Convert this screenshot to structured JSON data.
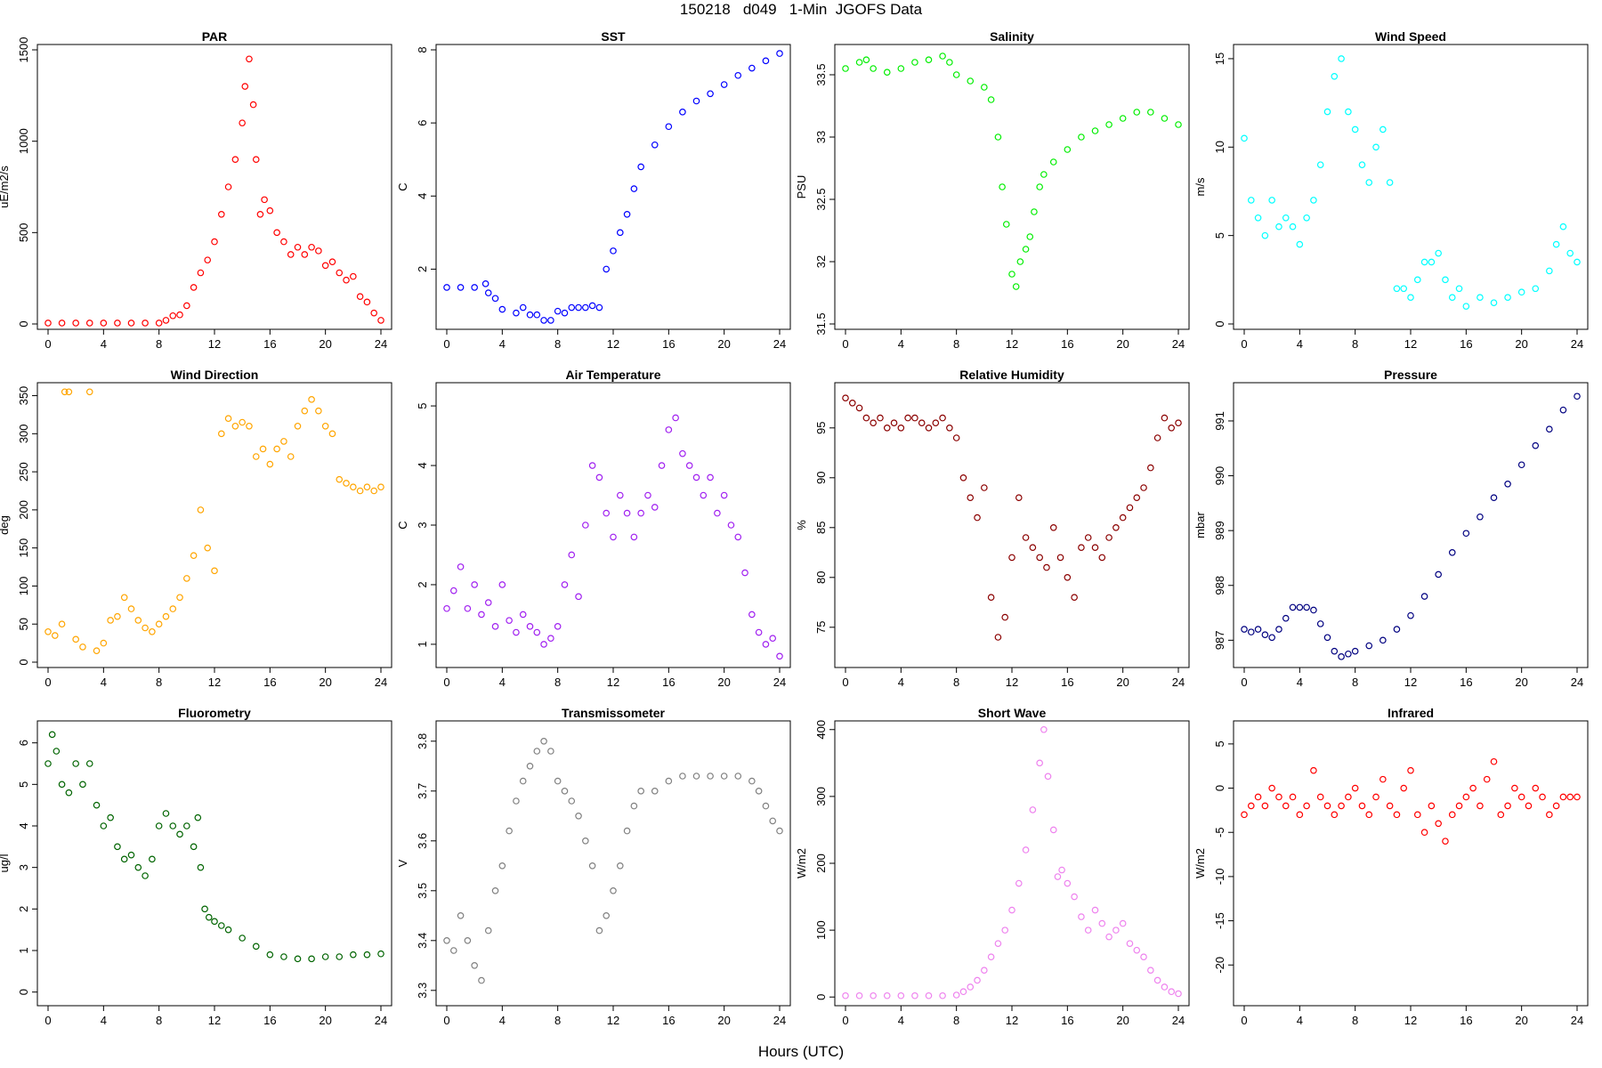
{
  "title": "150218   d049   1-Min  JGOFS Data",
  "xlabel": "Hours (UTC)",
  "chart_data": [
    {
      "type": "scatter",
      "title": "PAR",
      "ylabel": "uE/m2/s",
      "color": "#ff0000",
      "xlim": [
        0,
        24
      ],
      "ylim": [
        0,
        1500
      ],
      "xticks": [
        0,
        4,
        8,
        12,
        16,
        20,
        24
      ],
      "yticks": [
        0,
        500,
        1000,
        1500
      ],
      "x": [
        0,
        1,
        2,
        3,
        4,
        5,
        6,
        7,
        8,
        8.5,
        9,
        9.5,
        10,
        10.5,
        11,
        11.5,
        12,
        12.5,
        13,
        13.5,
        14,
        14.2,
        14.5,
        14.8,
        15,
        15.3,
        15.6,
        16,
        16.5,
        17,
        17.5,
        18,
        18.5,
        19,
        19.5,
        20,
        20.5,
        21,
        21.5,
        22,
        22.5,
        23,
        23.5,
        24
      ],
      "y": [
        5,
        5,
        5,
        5,
        5,
        5,
        5,
        5,
        5,
        20,
        45,
        50,
        100,
        200,
        280,
        350,
        450,
        600,
        750,
        900,
        1100,
        1300,
        1450,
        1200,
        900,
        600,
        680,
        620,
        500,
        450,
        380,
        420,
        380,
        420,
        400,
        320,
        340,
        280,
        240,
        260,
        150,
        120,
        60,
        20
      ]
    },
    {
      "type": "scatter",
      "title": "SST",
      "ylabel": "C",
      "color": "#0000ff",
      "xlim": [
        0,
        24
      ],
      "ylim": [
        0.5,
        8
      ],
      "xticks": [
        0,
        4,
        8,
        12,
        16,
        20,
        24
      ],
      "yticks": [
        2,
        4,
        6,
        8
      ],
      "x": [
        0,
        1,
        2,
        2.8,
        3,
        3.5,
        4,
        5,
        5.5,
        6,
        6.5,
        7,
        7.5,
        8,
        8.5,
        9,
        9.5,
        10,
        10.5,
        11,
        11.5,
        12,
        12.5,
        13,
        13.5,
        14,
        15,
        16,
        17,
        18,
        19,
        20,
        21,
        22,
        23,
        24
      ],
      "y": [
        1.5,
        1.5,
        1.5,
        1.6,
        1.35,
        1.2,
        0.9,
        0.8,
        0.95,
        0.75,
        0.75,
        0.6,
        0.6,
        0.85,
        0.8,
        0.95,
        0.95,
        0.95,
        1.0,
        0.95,
        2.0,
        2.5,
        3.0,
        3.5,
        4.2,
        4.8,
        5.4,
        5.9,
        6.3,
        6.6,
        6.8,
        7.05,
        7.3,
        7.5,
        7.7,
        7.9
      ]
    },
    {
      "type": "scatter",
      "title": "Salinity",
      "ylabel": "PSU",
      "color": "#00ee00",
      "xlim": [
        0,
        24
      ],
      "ylim": [
        31.5,
        33.7
      ],
      "xticks": [
        0,
        4,
        8,
        12,
        16,
        20,
        24
      ],
      "yticks": [
        31.5,
        32.0,
        32.5,
        33.0,
        33.5
      ],
      "x": [
        0,
        1,
        1.5,
        2,
        3,
        4,
        5,
        6,
        7,
        7.5,
        8,
        9,
        10,
        10.5,
        11,
        11.3,
        11.6,
        12,
        12.3,
        12.6,
        13,
        13.3,
        13.6,
        14,
        14.3,
        15,
        16,
        17,
        18,
        19,
        20,
        21,
        22,
        23,
        24
      ],
      "y": [
        33.55,
        33.6,
        33.62,
        33.55,
        33.52,
        33.55,
        33.6,
        33.62,
        33.65,
        33.6,
        33.5,
        33.45,
        33.4,
        33.3,
        33.0,
        32.6,
        32.3,
        31.9,
        31.8,
        32.0,
        32.1,
        32.2,
        32.4,
        32.6,
        32.7,
        32.8,
        32.9,
        33.0,
        33.05,
        33.1,
        33.15,
        33.2,
        33.2,
        33.15,
        33.1
      ]
    },
    {
      "type": "scatter",
      "title": "Wind Speed",
      "ylabel": "m/s",
      "color": "#00ffff",
      "xlim": [
        0,
        24
      ],
      "ylim": [
        0,
        15.5
      ],
      "xticks": [
        0,
        4,
        8,
        12,
        16,
        20,
        24
      ],
      "yticks": [
        0,
        5,
        10,
        15
      ],
      "x": [
        0,
        0.5,
        1,
        1.5,
        2,
        2.5,
        3,
        3.5,
        4,
        4.5,
        5,
        5.5,
        6,
        6.5,
        7,
        7.5,
        8,
        8.5,
        9,
        9.5,
        10,
        10.5,
        11,
        11.5,
        12,
        12.5,
        13,
        13.5,
        14,
        14.5,
        15,
        15.5,
        16,
        17,
        18,
        19,
        20,
        21,
        22,
        22.5,
        23,
        23.5,
        24
      ],
      "y": [
        10.5,
        7,
        6,
        5,
        7,
        5.5,
        6,
        5.5,
        4.5,
        6,
        7,
        9,
        12,
        14,
        15,
        12,
        11,
        9,
        8,
        10,
        11,
        8,
        2,
        2,
        1.5,
        2.5,
        3.5,
        3.5,
        4,
        2.5,
        1.5,
        2,
        1,
        1.5,
        1.2,
        1.5,
        1.8,
        2.0,
        3,
        4.5,
        5.5,
        4.0,
        3.5
      ]
    },
    {
      "type": "scatter",
      "title": "Wind Direction",
      "ylabel": "deg",
      "color": "#ffa500",
      "xlim": [
        0,
        24
      ],
      "ylim": [
        0,
        360
      ],
      "xticks": [
        0,
        4,
        8,
        12,
        16,
        20,
        24
      ],
      "yticks": [
        0,
        50,
        100,
        150,
        200,
        250,
        300,
        350
      ],
      "x": [
        0,
        0.5,
        1,
        1.2,
        1.5,
        2,
        2.5,
        3,
        3.5,
        4,
        4.5,
        5,
        5.5,
        6,
        6.5,
        7,
        7.5,
        8,
        8.5,
        9,
        9.5,
        10,
        10.5,
        11,
        11.5,
        12,
        12.5,
        13,
        13.5,
        14,
        14.5,
        15,
        15.5,
        16,
        16.5,
        17,
        17.5,
        18,
        18.5,
        19,
        19.5,
        20,
        20.5,
        21,
        21.5,
        22,
        22.5,
        23,
        23.5,
        24
      ],
      "y": [
        40,
        35,
        50,
        355,
        355,
        30,
        20,
        355,
        15,
        25,
        55,
        60,
        85,
        70,
        55,
        45,
        40,
        50,
        60,
        70,
        85,
        110,
        140,
        200,
        150,
        120,
        300,
        320,
        310,
        315,
        310,
        270,
        280,
        260,
        280,
        290,
        270,
        310,
        330,
        345,
        330,
        310,
        300,
        240,
        235,
        230,
        225,
        230,
        225,
        230
      ]
    },
    {
      "type": "scatter",
      "title": "Air Temperature",
      "ylabel": "C",
      "color": "#a020f0",
      "xlim": [
        0,
        24
      ],
      "ylim": [
        0.7,
        5.3
      ],
      "xticks": [
        0,
        4,
        8,
        12,
        16,
        20,
        24
      ],
      "yticks": [
        1,
        2,
        3,
        4,
        5
      ],
      "x": [
        0,
        0.5,
        1,
        1.5,
        2,
        2.5,
        3,
        3.5,
        4,
        4.5,
        5,
        5.5,
        6,
        6.5,
        7,
        7.5,
        8,
        8.5,
        9,
        9.5,
        10,
        10.5,
        11,
        11.5,
        12,
        12.5,
        13,
        13.5,
        14,
        14.5,
        15,
        15.5,
        16,
        16.5,
        17,
        17.5,
        18,
        18.5,
        19,
        19.5,
        20,
        20.5,
        21,
        21.5,
        22,
        22.5,
        23,
        23.5,
        24
      ],
      "y": [
        1.6,
        1.9,
        2.3,
        1.6,
        2.0,
        1.5,
        1.7,
        1.3,
        2.0,
        1.4,
        1.2,
        1.5,
        1.3,
        1.2,
        1.0,
        1.1,
        1.3,
        2.0,
        2.5,
        1.8,
        3.0,
        4.0,
        3.8,
        3.2,
        2.8,
        3.5,
        3.2,
        2.8,
        3.2,
        3.5,
        3.3,
        4.0,
        4.6,
        4.8,
        4.2,
        4.0,
        3.8,
        3.5,
        3.8,
        3.2,
        3.5,
        3.0,
        2.8,
        2.2,
        1.5,
        1.2,
        1.0,
        1.1,
        0.8
      ]
    },
    {
      "type": "scatter",
      "title": "Relative Humidity",
      "ylabel": "%",
      "color": "#8b0000",
      "xlim": [
        0,
        24
      ],
      "ylim": [
        71.5,
        99
      ],
      "xticks": [
        0,
        4,
        8,
        12,
        16,
        20,
        24
      ],
      "yticks": [
        75,
        80,
        85,
        90,
        95
      ],
      "x": [
        0,
        0.5,
        1,
        1.5,
        2,
        2.5,
        3,
        3.5,
        4,
        4.5,
        5,
        5.5,
        6,
        6.5,
        7,
        7.5,
        8,
        8.5,
        9,
        9.5,
        10,
        10.5,
        11,
        11.5,
        12,
        12.5,
        13,
        13.5,
        14,
        14.5,
        15,
        15.5,
        16,
        16.5,
        17,
        17.5,
        18,
        18.5,
        19,
        19.5,
        20,
        20.5,
        21,
        21.5,
        22,
        22.5,
        23,
        23.5,
        24
      ],
      "y": [
        98,
        97.5,
        97,
        96,
        95.5,
        96,
        95,
        95.5,
        95,
        96,
        96,
        95.5,
        95,
        95.5,
        96,
        95,
        94,
        90,
        88,
        86,
        89,
        78,
        74,
        76,
        82,
        88,
        84,
        83,
        82,
        81,
        85,
        82,
        80,
        78,
        83,
        84,
        83,
        82,
        84,
        85,
        86,
        87,
        88,
        89,
        91,
        94,
        96,
        95,
        95.5
      ]
    },
    {
      "type": "scatter",
      "title": "Pressure",
      "ylabel": "mbar",
      "color": "#000080",
      "xlim": [
        0,
        24
      ],
      "ylim": [
        986.6,
        991.6
      ],
      "xticks": [
        0,
        4,
        8,
        12,
        16,
        20,
        24
      ],
      "yticks": [
        987,
        988,
        989,
        990,
        991
      ],
      "x": [
        0,
        0.5,
        1,
        1.5,
        2,
        2.5,
        3,
        3.5,
        4,
        4.5,
        5,
        5.5,
        6,
        6.5,
        7,
        7.5,
        8,
        9,
        10,
        11,
        12,
        13,
        14,
        15,
        16,
        17,
        18,
        19,
        20,
        21,
        22,
        23,
        24
      ],
      "y": [
        987.2,
        987.15,
        987.2,
        987.1,
        987.05,
        987.2,
        987.4,
        987.6,
        987.6,
        987.6,
        987.55,
        987.3,
        987.05,
        986.8,
        986.7,
        986.75,
        986.8,
        986.9,
        987.0,
        987.2,
        987.45,
        987.8,
        988.2,
        988.6,
        988.95,
        989.25,
        989.6,
        989.85,
        990.2,
        990.55,
        990.85,
        991.2,
        991.45
      ]
    },
    {
      "type": "scatter",
      "title": "Fluorometry",
      "ylabel": "ug/l",
      "color": "#006400",
      "xlim": [
        0,
        24
      ],
      "ylim": [
        -0.2,
        6.4
      ],
      "xticks": [
        0,
        4,
        8,
        12,
        16,
        20,
        24
      ],
      "yticks": [
        0,
        1,
        2,
        3,
        4,
        5,
        6
      ],
      "x": [
        0,
        0.3,
        0.6,
        1,
        1.5,
        2,
        2.5,
        3,
        3.5,
        4,
        4.5,
        5,
        5.5,
        6,
        6.5,
        7,
        7.5,
        8,
        8.5,
        9,
        9.5,
        10,
        10.5,
        10.8,
        11,
        11.3,
        11.6,
        12,
        12.5,
        13,
        14,
        15,
        16,
        17,
        18,
        19,
        20,
        21,
        22,
        23,
        24
      ],
      "y": [
        5.5,
        6.2,
        5.8,
        5.0,
        4.8,
        5.5,
        5.0,
        5.5,
        4.5,
        4.0,
        4.2,
        3.5,
        3.2,
        3.3,
        3.0,
        2.8,
        3.2,
        4.0,
        4.3,
        4.0,
        3.8,
        4.0,
        3.5,
        4.2,
        3.0,
        2.0,
        1.8,
        1.7,
        1.6,
        1.5,
        1.3,
        1.1,
        0.9,
        0.85,
        0.8,
        0.8,
        0.85,
        0.85,
        0.9,
        0.9,
        0.92
      ]
    },
    {
      "type": "scatter",
      "title": "Transmissometer",
      "ylabel": "V",
      "color": "#808080",
      "xlim": [
        0,
        24
      ],
      "ylim": [
        3.28,
        3.83
      ],
      "xticks": [
        0,
        4,
        8,
        12,
        16,
        20,
        24
      ],
      "yticks": [
        3.3,
        3.4,
        3.5,
        3.6,
        3.7,
        3.8
      ],
      "x": [
        0,
        0.5,
        1,
        1.5,
        2,
        2.5,
        3,
        3.5,
        4,
        4.5,
        5,
        5.5,
        6,
        6.5,
        7,
        7.5,
        8,
        8.5,
        9,
        9.5,
        10,
        10.5,
        11,
        11.5,
        12,
        12.5,
        13,
        13.5,
        14,
        15,
        16,
        17,
        18,
        19,
        20,
        21,
        22,
        22.5,
        23,
        23.5,
        24
      ],
      "y": [
        3.4,
        3.38,
        3.45,
        3.4,
        3.35,
        3.32,
        3.42,
        3.5,
        3.55,
        3.62,
        3.68,
        3.72,
        3.75,
        3.78,
        3.8,
        3.78,
        3.72,
        3.7,
        3.68,
        3.65,
        3.6,
        3.55,
        3.42,
        3.45,
        3.5,
        3.55,
        3.62,
        3.67,
        3.7,
        3.7,
        3.72,
        3.73,
        3.73,
        3.73,
        3.73,
        3.73,
        3.72,
        3.7,
        3.67,
        3.64,
        3.62
      ]
    },
    {
      "type": "scatter",
      "title": "Short Wave",
      "ylabel": "W/m2",
      "color": "#ee82ee",
      "xlim": [
        0,
        24
      ],
      "ylim": [
        -5,
        405
      ],
      "xticks": [
        0,
        4,
        8,
        12,
        16,
        20,
        24
      ],
      "yticks": [
        0,
        100,
        200,
        300,
        400
      ],
      "x": [
        0,
        1,
        2,
        3,
        4,
        5,
        6,
        7,
        8,
        8.5,
        9,
        9.5,
        10,
        10.5,
        11,
        11.5,
        12,
        12.5,
        13,
        13.5,
        14,
        14.3,
        14.6,
        15,
        15.3,
        15.6,
        16,
        16.5,
        17,
        17.5,
        18,
        18.5,
        19,
        19.5,
        20,
        20.5,
        21,
        21.5,
        22,
        22.5,
        23,
        23.5,
        24
      ],
      "y": [
        2,
        2,
        2,
        2,
        2,
        2,
        2,
        2,
        3,
        8,
        15,
        25,
        40,
        60,
        80,
        100,
        130,
        170,
        220,
        280,
        350,
        400,
        330,
        250,
        180,
        190,
        170,
        150,
        120,
        100,
        130,
        110,
        90,
        100,
        110,
        80,
        70,
        60,
        40,
        25,
        15,
        8,
        5
      ]
    },
    {
      "type": "scatter",
      "title": "Infrared",
      "ylabel": "W/m2",
      "color": "#ff0000",
      "xlim": [
        0,
        24
      ],
      "ylim": [
        -24,
        7
      ],
      "xticks": [
        0,
        4,
        8,
        12,
        16,
        20,
        24
      ],
      "yticks": [
        -20,
        -15,
        -10,
        -5,
        0,
        5
      ],
      "x": [
        0,
        0.5,
        1,
        1.5,
        2,
        2.5,
        3,
        3.5,
        4,
        4.5,
        5,
        5.5,
        6,
        6.5,
        7,
        7.5,
        8,
        8.5,
        9,
        9.5,
        10,
        10.5,
        11,
        11.5,
        12,
        12.5,
        13,
        13.5,
        14,
        14.5,
        15,
        15.5,
        16,
        16.5,
        17,
        17.5,
        18,
        18.5,
        19,
        19.5,
        20,
        20.5,
        21,
        21.5,
        22,
        22.5,
        23,
        23.5,
        24
      ],
      "y": [
        -3,
        -2,
        -1,
        -2,
        0,
        -1,
        -2,
        -1,
        -3,
        -2,
        2,
        -1,
        -2,
        -3,
        -2,
        -1,
        0,
        -2,
        -3,
        -1,
        1,
        -2,
        -3,
        0,
        2,
        -3,
        -5,
        -2,
        -4,
        -6,
        -3,
        -2,
        -1,
        0,
        -2,
        1,
        3,
        -3,
        -2,
        0,
        -1,
        -2,
        0,
        -1,
        -3,
        -2,
        -1,
        -1,
        -1
      ]
    }
  ]
}
